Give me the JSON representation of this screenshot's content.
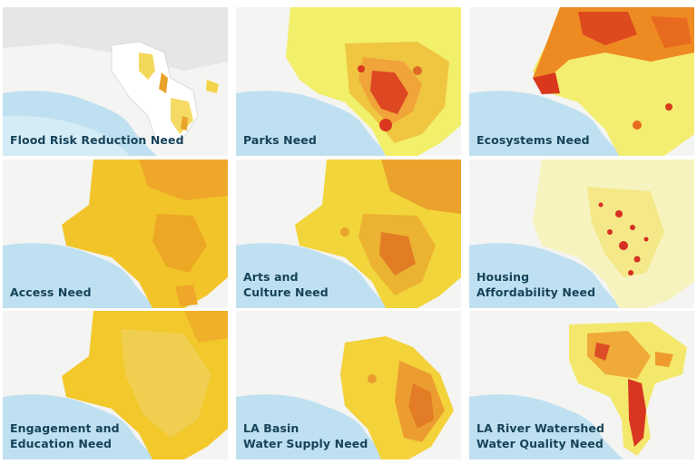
{
  "tiles": [
    {
      "id": "flood",
      "lines": [
        "Flood Risk Reduction Need"
      ],
      "fill": "#ffffff",
      "accent": "#f3d44a",
      "hot": "#e9a22a",
      "style": "sparse"
    },
    {
      "id": "parks",
      "lines": [
        "Parks Need"
      ],
      "fill": "#f2ef6a",
      "accent": "#f0a43a",
      "hot": "#d9381f",
      "style": "mixed"
    },
    {
      "id": "ecosystems",
      "lines": [
        "Ecosystems Need"
      ],
      "fill": "#f3ee71",
      "accent": "#ee8a22",
      "hot": "#d8391d",
      "style": "northhot"
    },
    {
      "id": "access",
      "lines": [
        "Access Need"
      ],
      "fill": "#f2c42a",
      "accent": "#eea729",
      "hot": "#e58b1e",
      "style": "solid"
    },
    {
      "id": "arts",
      "lines": [
        "Arts and",
        "Culture Need"
      ],
      "fill": "#f1d53a",
      "accent": "#eaa22d",
      "hot": "#df6b23",
      "style": "mixed"
    },
    {
      "id": "housing",
      "lines": [
        "Housing",
        "Affordability Need"
      ],
      "fill": "#f7f3bf",
      "accent": "#f3e57a",
      "hot": "#d62f23",
      "style": "spots"
    },
    {
      "id": "engagement",
      "lines": [
        "Engagement and",
        "Education Need"
      ],
      "fill": "#f2c82b",
      "accent": "#efd15a",
      "hot": "#f0b02a",
      "style": "solid"
    },
    {
      "id": "basin",
      "lines": [
        "LA Basin",
        "Water Supply Need"
      ],
      "fill": "#f3d23a",
      "accent": "#ec9d30",
      "hot": "#e37c26",
      "style": "basin"
    },
    {
      "id": "river",
      "lines": [
        "LA River Watershed",
        "Water Quality Need"
      ],
      "fill": "#f4e86c",
      "accent": "#ef9a2c",
      "hot": "#d83621",
      "style": "river"
    }
  ]
}
